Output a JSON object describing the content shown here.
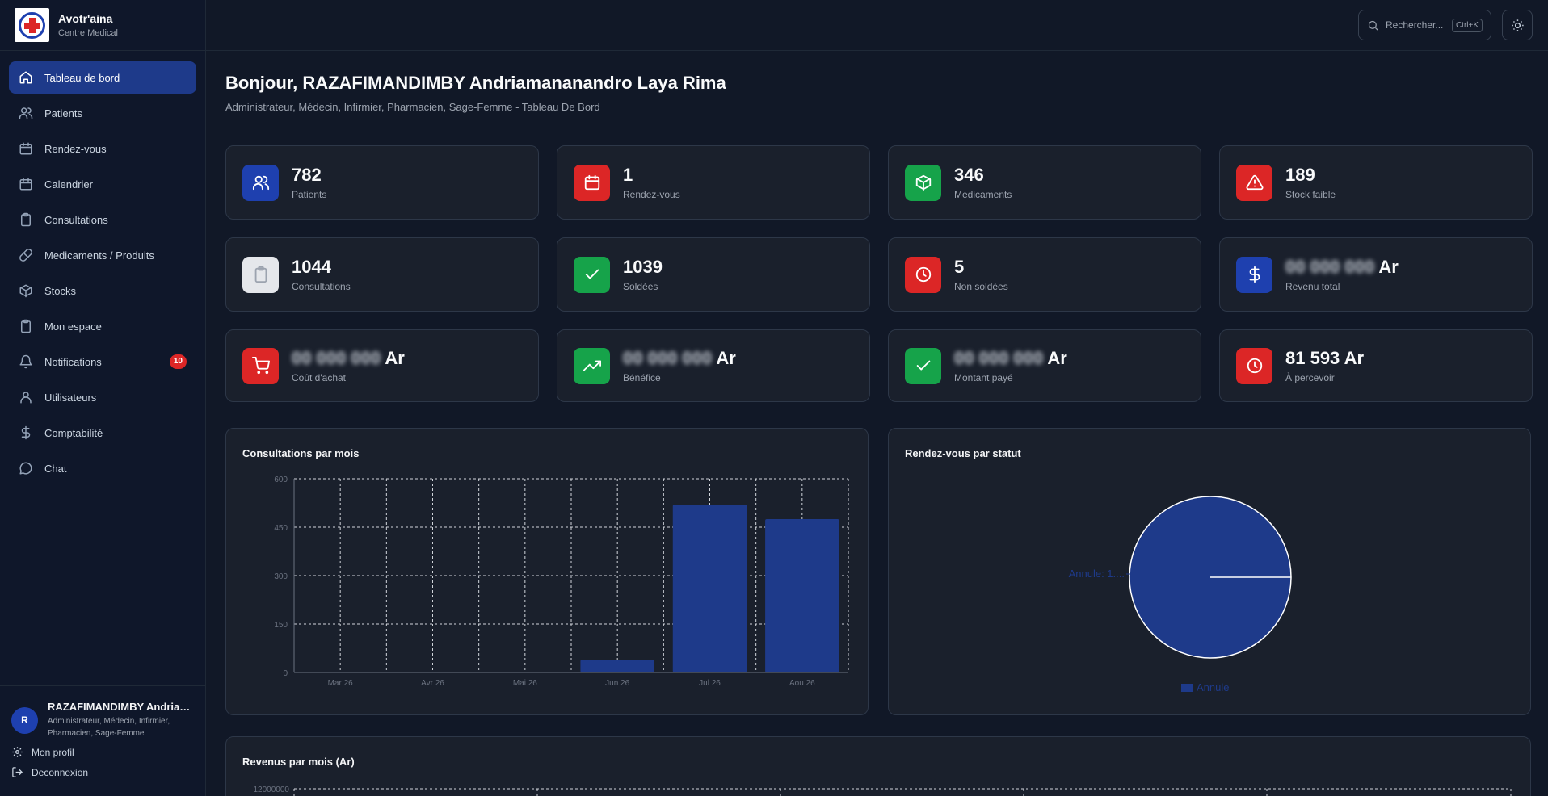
{
  "brand": {
    "name": "Avotr'aina",
    "subtitle": "Centre Medical"
  },
  "sidebar": {
    "items": [
      {
        "label": "Tableau de bord",
        "icon": "home-icon",
        "active": true
      },
      {
        "label": "Patients",
        "icon": "users-icon"
      },
      {
        "label": "Rendez-vous",
        "icon": "calendar-icon"
      },
      {
        "label": "Calendrier",
        "icon": "calendar-icon"
      },
      {
        "label": "Consultations",
        "icon": "clipboard-icon"
      },
      {
        "label": "Medicaments / Produits",
        "icon": "pill-icon"
      },
      {
        "label": "Stocks",
        "icon": "package-icon"
      },
      {
        "label": "Mon espace",
        "icon": "clipboard-icon"
      },
      {
        "label": "Notifications",
        "icon": "bell-icon",
        "badge": "10"
      },
      {
        "label": "Utilisateurs",
        "icon": "user-icon"
      },
      {
        "label": "Comptabilité",
        "icon": "dollar-icon"
      },
      {
        "label": "Chat",
        "icon": "chat-icon"
      }
    ]
  },
  "user": {
    "initial": "R",
    "name": "RAZAFIMANDIMBY Andriamana...",
    "roles": "Administrateur, Médecin, Infirmier, Pharmacien, Sage-Femme",
    "profile_label": "Mon profil",
    "logout_label": "Deconnexion"
  },
  "topbar": {
    "search_placeholder": "Rechercher...",
    "shortcut": "Ctrl+K"
  },
  "header": {
    "greeting": "Bonjour, RAZAFIMANDIMBY Andriamananandro Laya Rima",
    "subtitle": "Administrateur, Médecin, Infirmier, Pharmacien, Sage-Femme - Tableau De Bord"
  },
  "stats": [
    {
      "value": "782",
      "label": "Patients",
      "color": "#1e40af",
      "icon": "users-icon"
    },
    {
      "value": "1",
      "label": "Rendez-vous",
      "color": "#dc2626",
      "icon": "calendar-icon"
    },
    {
      "value": "346",
      "label": "Medicaments",
      "color": "#16a34a",
      "icon": "package-icon"
    },
    {
      "value": "189",
      "label": "Stock faible",
      "color": "#dc2626",
      "icon": "warning-icon"
    },
    {
      "value": "1044",
      "label": "Consultations",
      "color": "#e5e7eb",
      "icon": "clipboard-icon"
    },
    {
      "value": "1039",
      "label": "Soldées",
      "color": "#16a34a",
      "icon": "check-icon"
    },
    {
      "value": "5",
      "label": "Non soldées",
      "color": "#dc2626",
      "icon": "clock-icon"
    },
    {
      "value": "Ar",
      "masked": "00 000 000",
      "label": "Revenu total",
      "color": "#1e40af",
      "icon": "dollar-icon"
    },
    {
      "value": "Ar",
      "masked": "00 000 000",
      "label": "Coût d'achat",
      "color": "#dc2626",
      "icon": "cart-icon"
    },
    {
      "value": "Ar",
      "masked": "00 000 000",
      "label": "Bénéfice",
      "color": "#16a34a",
      "icon": "trending-up-icon"
    },
    {
      "value": "Ar",
      "masked": "00 000 000",
      "label": "Montant payé",
      "color": "#16a34a",
      "icon": "check-icon"
    },
    {
      "value": "81 593 Ar",
      "label": "À percevoir",
      "color": "#dc2626",
      "icon": "clock-icon"
    }
  ],
  "panels": {
    "consultations_title": "Consultations par mois",
    "rdv_title": "Rendez-vous par statut",
    "revenue_title": "Revenus par mois (Ar)"
  },
  "chart_data": [
    {
      "type": "bar",
      "title": "Consultations par mois",
      "categories": [
        "Mar 26",
        "Avr 26",
        "Mai 26",
        "Jun 26",
        "Jul 26",
        "Aou 26"
      ],
      "values": [
        0,
        0,
        0,
        40,
        520,
        475
      ],
      "ylim": [
        0,
        600
      ],
      "yticks": [
        0,
        150,
        300,
        450,
        600
      ],
      "grid": true,
      "color": "#1e3a8a"
    },
    {
      "type": "pie",
      "title": "Rendez-vous par statut",
      "labels": [
        "Annule"
      ],
      "values": [
        1
      ],
      "slice_label": "Annule: 1....",
      "legend": "bottom",
      "color": "#1e3a8a"
    },
    {
      "type": "bar",
      "title": "Revenus par mois (Ar)",
      "ytick_top": "12000000",
      "grid": true
    }
  ]
}
